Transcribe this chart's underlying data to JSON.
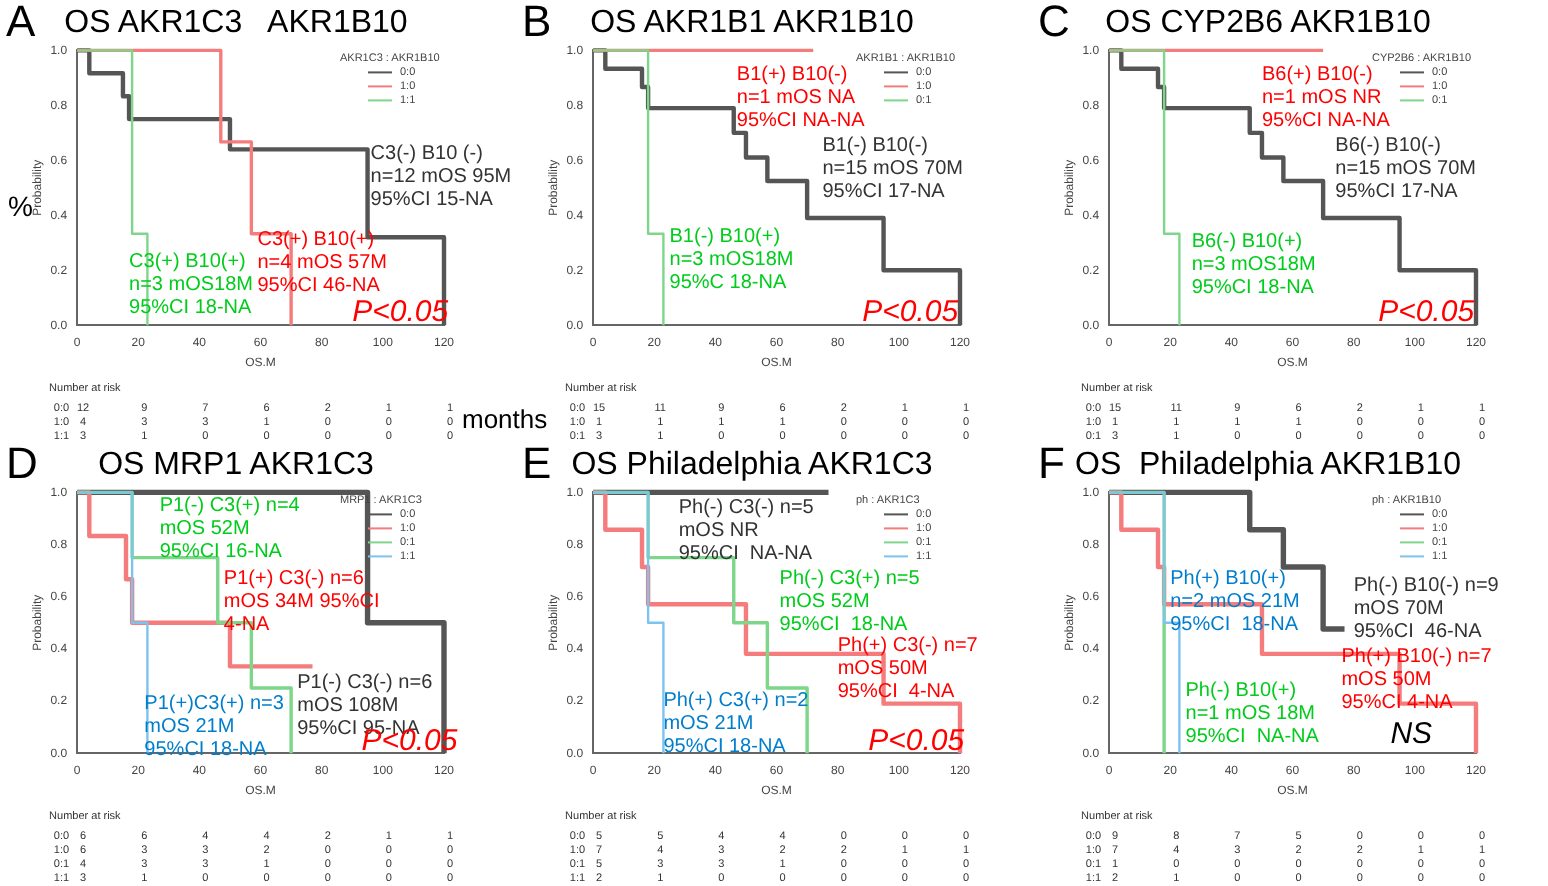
{
  "chart_data": [
    {
      "type": "step",
      "title": "OS AKR1C3   AKR1B10",
      "xlabel": "OS.M",
      "ylabel": "Probability",
      "legend_title": "AKR1C3 : AKR1B10",
      "legend": "top right",
      "xlim": [
        0,
        120
      ],
      "ylim": [
        0,
        1
      ],
      "xticks": [
        0,
        20,
        40,
        60,
        80,
        100,
        120
      ],
      "yticks": [
        {
          "value": 0,
          "label": "0.0"
        },
        {
          "value": 0.2,
          "label": "0.2"
        },
        {
          "value": 0.4,
          "label": "0.4"
        },
        {
          "value": 0.6,
          "label": "0.6"
        },
        {
          "value": 0.8,
          "label": "0.8"
        },
        {
          "value": 1,
          "label": "1.0"
        }
      ],
      "series": [
        {
          "name": "0:0",
          "color": "#555555",
          "x": [
            0,
            4,
            15,
            17,
            50,
            95,
            120
          ],
          "values": [
            1,
            0.917,
            0.833,
            0.75,
            0.64,
            0.32,
            0
          ]
        },
        {
          "name": "1:0",
          "color": "#f47c7c",
          "x": [
            0,
            47,
            57,
            70
          ],
          "values": [
            1,
            0.667,
            0.333,
            0
          ]
        },
        {
          "name": "1:1",
          "color": "#7ed68a",
          "x": [
            0,
            18,
            23
          ],
          "values": [
            1,
            0.333,
            0
          ]
        }
      ],
      "annotations": [
        "A",
        "Number at risk",
        "0:0 12 9 7 6 2 1 1",
        "1:0 4 3 3 1 0 0 0",
        "1:1 3 1 0 0 0 0 0",
        "C3(-) B10 (-)\nn=12 mOS 95M\n95%CI 15-NA",
        "C3(+) B10(+)\nn=4 mOS 57M\n95%CI 46-NA",
        "C3(+) B10(+)\nn=3 mOS18M\n95%CI 18-NA",
        "P<0.05",
        "%",
        "months"
      ]
    },
    {
      "type": "step",
      "title": "OS AKR1B1 AKR1B10",
      "xlabel": "OS.M",
      "ylabel": "Probability",
      "legend_title": "AKR1B1 : AKR1B10",
      "legend": "top right",
      "xlim": [
        0,
        120
      ],
      "ylim": [
        0,
        1
      ],
      "xticks": [
        0,
        20,
        40,
        60,
        80,
        100,
        120
      ],
      "yticks": [
        {
          "value": 0,
          "label": "0.0"
        },
        {
          "value": 0.2,
          "label": "0.2"
        },
        {
          "value": 0.4,
          "label": "0.4"
        },
        {
          "value": 0.6,
          "label": "0.6"
        },
        {
          "value": 0.8,
          "label": "0.8"
        },
        {
          "value": 1,
          "label": "1.0"
        }
      ],
      "series": [
        {
          "name": "0:0",
          "color": "#555555",
          "x": [
            0,
            4,
            16,
            18,
            46,
            50,
            57,
            70,
            95,
            120
          ],
          "values": [
            1,
            0.933,
            0.867,
            0.79,
            0.7,
            0.61,
            0.525,
            0.39,
            0.2,
            0
          ]
        },
        {
          "name": "1:0",
          "color": "#f47c7c",
          "x": [
            0,
            72
          ],
          "values": [
            1,
            1
          ]
        },
        {
          "name": "0:1",
          "color": "#7ed68a",
          "x": [
            0,
            18,
            23
          ],
          "values": [
            1,
            0.333,
            0
          ]
        }
      ],
      "annotations": [
        "B",
        "Number at risk",
        "0:0 15 11 9 6 2 1 1",
        "1:0 1 1 1 1 0 0 0",
        "0:1 3 1 0 0 0 0 0",
        "B1(+) B10(-)\nn=1 mOS NA\n95%CI NA-NA",
        "B1(-) B10(-)\nn=15 mOS 70M\n95%CI 17-NA",
        "B1(-) B10(+)\nn=3 mOS18M\n95%C 18-NA",
        "P<0.05"
      ]
    },
    {
      "type": "step",
      "title": "OS CYP2B6 AKR1B10",
      "xlabel": "OS.M",
      "ylabel": "Probability",
      "legend_title": "CYP2B6 : AKR1B10",
      "legend": "top right",
      "xlim": [
        0,
        120
      ],
      "ylim": [
        0,
        1
      ],
      "xticks": [
        0,
        20,
        40,
        60,
        80,
        100,
        120
      ],
      "yticks": [
        {
          "value": 0,
          "label": "0.0"
        },
        {
          "value": 0.2,
          "label": "0.2"
        },
        {
          "value": 0.4,
          "label": "0.4"
        },
        {
          "value": 0.6,
          "label": "0.6"
        },
        {
          "value": 0.8,
          "label": "0.8"
        },
        {
          "value": 1,
          "label": "1.0"
        }
      ],
      "series": [
        {
          "name": "0:0",
          "color": "#555555",
          "x": [
            0,
            4,
            16,
            18,
            46,
            50,
            57,
            70,
            95,
            120
          ],
          "values": [
            1,
            0.933,
            0.867,
            0.79,
            0.7,
            0.61,
            0.525,
            0.39,
            0.2,
            0
          ]
        },
        {
          "name": "1:0",
          "color": "#f47c7c",
          "x": [
            0,
            70
          ],
          "values": [
            1,
            1
          ]
        },
        {
          "name": "0:1",
          "color": "#7ed68a",
          "x": [
            0,
            18,
            23
          ],
          "values": [
            1,
            0.333,
            0
          ]
        }
      ],
      "annotations": [
        "C",
        "Number at risk",
        "0:0 15 11 9 6 2 1 1",
        "1:0 1 1 1 1 0 0 0",
        "0:1 3 1 0 0 0 0 0",
        "B6(+) B10(-)\nn=1 mOS NR\n95%CI NA-NA",
        "B6(-) B10(-)\nn=15 mOS 70M\n95%CI 17-NA",
        "B6(-) B10(+)\nn=3 mOS18M\n95%CI 18-NA",
        "P<0.05"
      ]
    },
    {
      "type": "step",
      "title": "OS MRP1 AKR1C3",
      "xlabel": "OS.M",
      "ylabel": "Probability",
      "legend_title": "MRP1 : AKR1C3",
      "legend": "top right",
      "xlim": [
        0,
        120
      ],
      "ylim": [
        0,
        1
      ],
      "xticks": [
        0,
        20,
        40,
        60,
        80,
        100,
        120
      ],
      "yticks": [
        {
          "value": 0,
          "label": "0.0"
        },
        {
          "value": 0.2,
          "label": "0.2"
        },
        {
          "value": 0.4,
          "label": "0.4"
        },
        {
          "value": 0.6,
          "label": "0.6"
        },
        {
          "value": 0.8,
          "label": "0.8"
        },
        {
          "value": 1,
          "label": "1.0"
        }
      ],
      "series": [
        {
          "name": "0:0",
          "color": "#555555",
          "x": [
            0,
            95,
            120
          ],
          "values": [
            1,
            0.5,
            0
          ]
        },
        {
          "name": "1:0",
          "color": "#f47c7c",
          "x": [
            0,
            4,
            16,
            18,
            50,
            77
          ],
          "values": [
            1,
            0.833,
            0.667,
            0.5,
            0.333,
            0.333
          ]
        },
        {
          "name": "0:1",
          "color": "#7ed68a",
          "x": [
            0,
            18,
            46,
            57,
            70
          ],
          "values": [
            1,
            0.75,
            0.5,
            0.25,
            0
          ]
        },
        {
          "name": "1:1",
          "color": "#7cc3ee",
          "x": [
            0,
            18,
            23
          ],
          "values": [
            1,
            0.5,
            0
          ]
        }
      ],
      "annotations": [
        "D",
        "Number at risk",
        "0:0 6 6 4 4 2 1 1",
        "1:0 6 3 3 2 0 0 0",
        "0:1 4 3 3 1 0 0 0",
        "1:1 3 1 0 0 0 0 0",
        "P1(-) C3(+) n=4\nmOS 52M\n95%CI 16-NA",
        "P1(+) C3(-) n=6\nmOS 34M 95%CI\n4-NA",
        "P1(-) C3(-) n=6\nmOS 108M\n95%CI 95-NA",
        "P1(+)C3(+) n=3\nmOS 21M\n95%CI 18-NA",
        "P<0.05"
      ]
    },
    {
      "type": "step",
      "title": "OS Philadelphia AKR1C3",
      "xlabel": "OS.M",
      "ylabel": "Probability",
      "legend_title": "ph : AKR1C3",
      "legend": "top right",
      "xlim": [
        0,
        120
      ],
      "ylim": [
        0,
        1
      ],
      "xticks": [
        0,
        20,
        40,
        60,
        80,
        100,
        120
      ],
      "yticks": [
        {
          "value": 0,
          "label": "0.0"
        },
        {
          "value": 0.2,
          "label": "0.2"
        },
        {
          "value": 0.4,
          "label": "0.4"
        },
        {
          "value": 0.6,
          "label": "0.6"
        },
        {
          "value": 0.8,
          "label": "0.8"
        },
        {
          "value": 1,
          "label": "1.0"
        }
      ],
      "series": [
        {
          "name": "0:0",
          "color": "#555555",
          "x": [
            0,
            77
          ],
          "values": [
            1,
            1
          ]
        },
        {
          "name": "1:0",
          "color": "#f47c7c",
          "x": [
            0,
            4,
            16,
            18,
            50,
            95,
            120
          ],
          "values": [
            1,
            0.857,
            0.714,
            0.571,
            0.381,
            0.19,
            0
          ]
        },
        {
          "name": "0:1",
          "color": "#7ed68a",
          "x": [
            0,
            18,
            46,
            57,
            70
          ],
          "values": [
            1,
            0.75,
            0.5,
            0.25,
            0
          ]
        },
        {
          "name": "1:1",
          "color": "#7cc3ee",
          "x": [
            0,
            18,
            23
          ],
          "values": [
            1,
            0.5,
            0
          ]
        }
      ],
      "annotations": [
        "E",
        "Number at risk",
        "0:0 5 5 4 4 0 0 0",
        "1:0 7 4 3 2 2 1 1",
        "0:1 5 3 3 1 0 0 0",
        "1:1 2 1 0 0 0 0 0",
        "Ph(-) C3(-) n=5\nmOS NR\n95%CI  NA-NA",
        "Ph(-) C3(+) n=5\nmOS 52M\n95%CI  18-NA",
        "Ph(+) C3(-) n=7\nmOS 50M\n95%CI  4-NA",
        "Ph(+) C3(+) n=2\nmOS 21M\n95%CI 18-NA",
        "P<0.05"
      ]
    },
    {
      "type": "step",
      "title": "OS  Philadelphia AKR1B10",
      "xlabel": "OS.M",
      "ylabel": "Probability",
      "legend_title": "ph : AKR1B10",
      "legend": "top right",
      "xlim": [
        0,
        120
      ],
      "ylim": [
        0,
        1
      ],
      "xticks": [
        0,
        20,
        40,
        60,
        80,
        100,
        120
      ],
      "yticks": [
        {
          "value": 0,
          "label": "0.0"
        },
        {
          "value": 0.2,
          "label": "0.2"
        },
        {
          "value": 0.4,
          "label": "0.4"
        },
        {
          "value": 0.6,
          "label": "0.6"
        },
        {
          "value": 0.8,
          "label": "0.8"
        },
        {
          "value": 1,
          "label": "1.0"
        }
      ],
      "series": [
        {
          "name": "0:0",
          "color": "#555555",
          "x": [
            0,
            46,
            57,
            70,
            77
          ],
          "values": [
            1,
            0.857,
            0.714,
            0.476,
            0.476
          ]
        },
        {
          "name": "1:0",
          "color": "#f47c7c",
          "x": [
            0,
            4,
            16,
            18,
            50,
            95,
            120
          ],
          "values": [
            1,
            0.857,
            0.714,
            0.571,
            0.381,
            0.19,
            0
          ]
        },
        {
          "name": "0:1",
          "color": "#7ed68a",
          "x": [
            0,
            18
          ],
          "values": [
            1,
            0
          ]
        },
        {
          "name": "1:1",
          "color": "#7cc3ee",
          "x": [
            0,
            18,
            23
          ],
          "values": [
            1,
            0.5,
            0
          ]
        }
      ],
      "annotations": [
        "F",
        "Number at risk",
        "0:0 9 8 7 5 0 0 0",
        "1:0 7 4 3 2 2 1 1",
        "0:1 1 0 0 0 0 0 0",
        "1:1 2 1 0 0 0 0 0",
        "Ph(+) B10(+)\nn=2 mOS 21M\n95%CI  18-NA",
        "Ph(-) B10(-) n=9\nmOS 70M\n95%CI  46-NA",
        "Ph(+) B10(-) n=7\nmOS 50M\n95%CI 4-NA",
        "Ph(-) B10(+)\nn=1 mOS 18M\n95%CI  NA-NA",
        "NS"
      ]
    }
  ]
}
